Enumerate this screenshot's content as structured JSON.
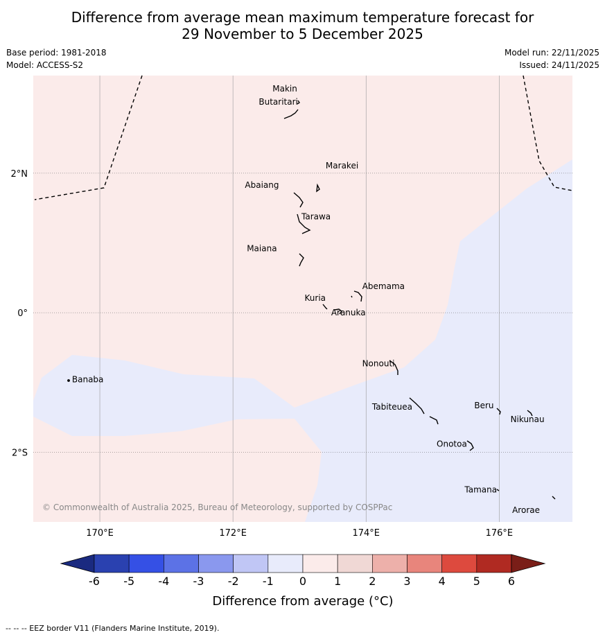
{
  "title": {
    "line1": "Difference from average mean maximum temperature forecast for",
    "line2": "29 November to 5 December 2025"
  },
  "meta": {
    "base_period": "Base period: 1981-2018",
    "model": "Model: ACCESS-S2",
    "model_run": "Model run: 22/11/2025",
    "issued": "Issued: 24/11/2025"
  },
  "map": {
    "lon_range": [
      169,
      177.1
    ],
    "lat_range": [
      -3.0,
      3.4
    ],
    "lon_ticks": [
      {
        "value": 170,
        "label": "170°E"
      },
      {
        "value": 172,
        "label": "172°E"
      },
      {
        "value": 174,
        "label": "174°E"
      },
      {
        "value": 176,
        "label": "176°E"
      }
    ],
    "lat_ticks": [
      {
        "value": 2,
        "label": "2°N"
      },
      {
        "value": 0,
        "label": "0°"
      },
      {
        "value": -2,
        "label": "2°S"
      }
    ],
    "anomaly_colors": {
      "warm": "#fbebea",
      "cool": "#e8ebfb"
    },
    "copyright": "© Commonwealth of Australia 2025, Bureau of Meteorology, supported by COSPPac",
    "islands": [
      {
        "name": "Makin",
        "lon": 172.98,
        "lat": 3.22
      },
      {
        "name": "Butaritari",
        "lon": 172.95,
        "lat": 3.05
      },
      {
        "name": "Marakei",
        "lon": 173.32,
        "lat": 2.0
      },
      {
        "name": "Abaiang",
        "lon": 172.95,
        "lat": 1.83
      },
      {
        "name": "Tarawa",
        "lon": 173.05,
        "lat": 1.38
      },
      {
        "name": "Maiana",
        "lon": 173.0,
        "lat": 0.93
      },
      {
        "name": "Abemama",
        "lon": 173.88,
        "lat": 0.38
      },
      {
        "name": "Kuria",
        "lon": 173.42,
        "lat": 0.22
      },
      {
        "name": "Aranuka",
        "lon": 173.6,
        "lat": 0.17
      },
      {
        "name": "Nonouti",
        "lon": 174.42,
        "lat": -0.68
      },
      {
        "name": "Banaba",
        "lon": 169.53,
        "lat": -0.87
      },
      {
        "name": "Tabiteuea",
        "lon": 174.85,
        "lat": -1.32
      },
      {
        "name": "Beru",
        "lon": 176.0,
        "lat": -1.33
      },
      {
        "name": "Nikunau",
        "lon": 176.45,
        "lat": -1.36
      },
      {
        "name": "Onotoa",
        "lon": 175.57,
        "lat": -1.86
      },
      {
        "name": "Tamana",
        "lon": 175.98,
        "lat": -2.5
      },
      {
        "name": "Arorae",
        "lon": 176.82,
        "lat": -2.65
      }
    ]
  },
  "colorbar": {
    "label": "Difference from average (°C)",
    "ticks": [
      "-6",
      "-5",
      "-4",
      "-3",
      "-2",
      "-1",
      "0",
      "1",
      "2",
      "3",
      "4",
      "5",
      "6"
    ],
    "bins": [
      {
        "from": -6,
        "to": -5,
        "color": "#2a41b0"
      },
      {
        "from": -5,
        "to": -4,
        "color": "#3550e5"
      },
      {
        "from": -4,
        "to": -3,
        "color": "#5c72e6"
      },
      {
        "from": -3,
        "to": -2,
        "color": "#8a98ee"
      },
      {
        "from": -2,
        "to": -1,
        "color": "#c0c6f5"
      },
      {
        "from": -1,
        "to": 0,
        "color": "#e8ebfb"
      },
      {
        "from": 0,
        "to": 1,
        "color": "#fbebea"
      },
      {
        "from": 1,
        "to": 2,
        "color": "#f0d8d5"
      },
      {
        "from": 2,
        "to": 3,
        "color": "#edb0aa"
      },
      {
        "from": 3,
        "to": 4,
        "color": "#e8857c"
      },
      {
        "from": 4,
        "to": 5,
        "color": "#dd4a3e"
      },
      {
        "from": 5,
        "to": 6,
        "color": "#b02a22"
      }
    ],
    "low_extend_color": "#1a2a80",
    "high_extend_color": "#7a1e18"
  },
  "footer": "--  --  -- EEZ border V11 (Flanders Marine Institute, 2019)."
}
